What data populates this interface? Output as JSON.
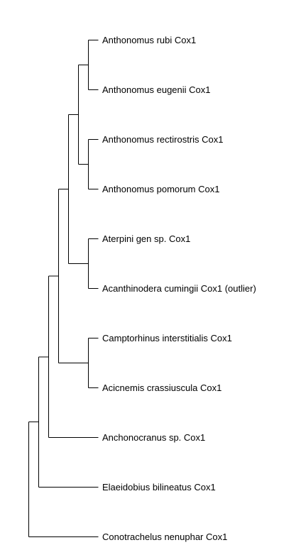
{
  "tree": {
    "tips": [
      {
        "id": "t1",
        "label": "Anthonomus rubi Cox1"
      },
      {
        "id": "t2",
        "label": "Anthonomus eugenii Cox1"
      },
      {
        "id": "t3",
        "label": "Anthonomus rectirostris Cox1"
      },
      {
        "id": "t4",
        "label": "Anthonomus pomorum Cox1"
      },
      {
        "id": "t5",
        "label": "Aterpini gen sp. Cox1"
      },
      {
        "id": "t6",
        "label": "Acanthinodera cumingii Cox1 (outlier)"
      },
      {
        "id": "t7",
        "label": "Camptorhinus interstitialis Cox1"
      },
      {
        "id": "t8",
        "label": "Acicnemis crassiuscula Cox1"
      },
      {
        "id": "t9",
        "label": "Anchonocranus sp. Cox1"
      },
      {
        "id": "t10",
        "label": "Elaeidobius bilineatus Cox1"
      },
      {
        "id": "t11",
        "label": "Conotrachelus nenuphar Cox1"
      }
    ],
    "topology": "(((((((Anthonomus rubi Cox1,Anthonomus eugenii Cox1),(Anthonomus rectirostris Cox1,Anthonomus pomorum Cox1)),(Aterpini gen sp. Cox1,Acanthinodera cumingii Cox1 (outlier))),(Camptorhinus interstitialis Cox1,Acicnemis crassiuscula Cox1)),Anchonocranus sp. Cox1),Elaeidobius bilineatus Cox1),Conotrachelus nenuphar Cox1)",
    "branch_color": "#000000",
    "label_color": "#000000"
  }
}
